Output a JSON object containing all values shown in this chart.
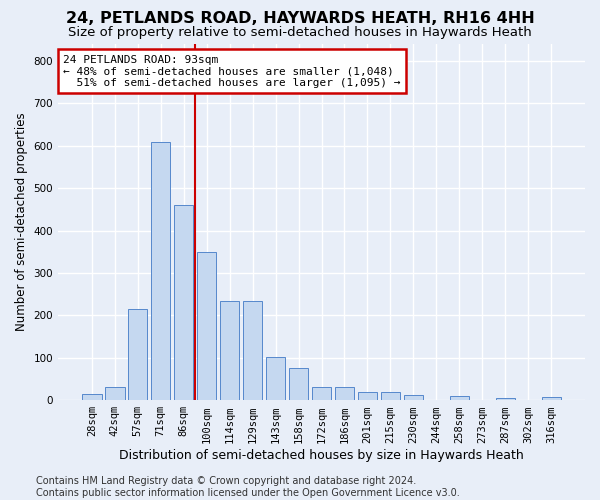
{
  "title": "24, PETLANDS ROAD, HAYWARDS HEATH, RH16 4HH",
  "subtitle": "Size of property relative to semi-detached houses in Haywards Heath",
  "xlabel": "Distribution of semi-detached houses by size in Haywards Heath",
  "ylabel": "Number of semi-detached properties",
  "categories": [
    "28sqm",
    "42sqm",
    "57sqm",
    "71sqm",
    "86sqm",
    "100sqm",
    "114sqm",
    "129sqm",
    "143sqm",
    "158sqm",
    "172sqm",
    "186sqm",
    "201sqm",
    "215sqm",
    "230sqm",
    "244sqm",
    "258sqm",
    "273sqm",
    "287sqm",
    "302sqm",
    "316sqm"
  ],
  "values": [
    15,
    32,
    215,
    610,
    460,
    350,
    235,
    235,
    102,
    77,
    30,
    30,
    20,
    20,
    12,
    0,
    10,
    0,
    6,
    0,
    8
  ],
  "bar_color": "#c5d8f0",
  "bar_edge_color": "#5588cc",
  "vline_index": 4,
  "vline_color": "#cc0000",
  "annotation_text": "24 PETLANDS ROAD: 93sqm\n← 48% of semi-detached houses are smaller (1,048)\n  51% of semi-detached houses are larger (1,095) →",
  "annotation_box_facecolor": "#ffffff",
  "annotation_box_edgecolor": "#cc0000",
  "footer": "Contains HM Land Registry data © Crown copyright and database right 2024.\nContains public sector information licensed under the Open Government Licence v3.0.",
  "ylim": [
    0,
    840
  ],
  "background_color": "#e8eef8",
  "grid_color": "#ffffff",
  "title_fontsize": 11.5,
  "subtitle_fontsize": 9.5,
  "xlabel_fontsize": 9,
  "ylabel_fontsize": 8.5,
  "tick_fontsize": 7.5,
  "annotation_fontsize": 8,
  "footer_fontsize": 7
}
